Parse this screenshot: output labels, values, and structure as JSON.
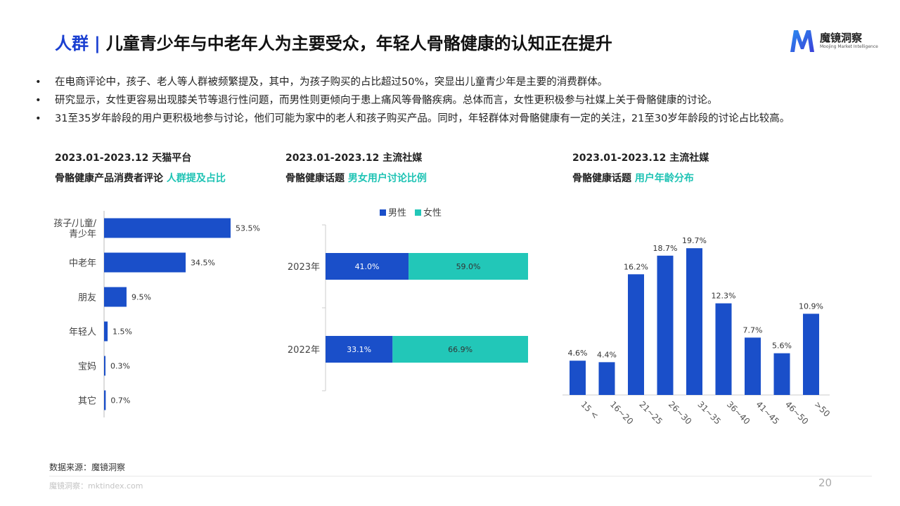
{
  "header": {
    "category": "人群",
    "separator": "|",
    "title": "儿童青少年与中老年人为主要受众，年轻人骨骼健康的认知正在提升"
  },
  "logo": {
    "name": "魔镜洞察",
    "tagline": "Moojing Market Intelligence"
  },
  "bullets": [
    "在电商评论中，孩子、老人等人群被频繁提及，其中，为孩子购买的占比超过50%，突显出儿童青少年是主要的消费群体。",
    "研究显示，女性更容易出现膝关节等退行性问题，而男性则更倾向于患上痛风等骨骼疾病。总体而言，女性更积极参与社媒上关于骨骼健康的讨论。",
    "31至35岁年龄段的用户更积极地参与讨论，他们可能为家中的老人和孩子购买产品。同时，年轻群体对骨骼健康有一定的关注，21至30岁年龄段的讨论占比较高。"
  ],
  "chart_headers": [
    {
      "period": "2023.01-2023.12 天猫平台",
      "topic": "骨骼健康产品消费者评论",
      "highlight": "人群提及占比"
    },
    {
      "period": "2023.01-2023.12 主流社媒",
      "topic": "骨骼健康话题",
      "highlight": "男女用户讨论比例"
    },
    {
      "period": "2023.01-2023.12 主流社媒",
      "topic": "骨骼健康话题",
      "highlight": "用户年龄分布"
    }
  ],
  "colors": {
    "primary": "#1a4fc9",
    "accent": "#22c7b8",
    "title_blue": "#1a3fd1"
  },
  "chart_data": [
    {
      "type": "bar",
      "orientation": "horizontal",
      "categories": [
        [
          "孩子/儿童/",
          "青少年"
        ],
        [
          "中老年"
        ],
        [
          "朋友"
        ],
        [
          "年轻人"
        ],
        [
          "宝妈"
        ],
        [
          "其它"
        ]
      ],
      "values": [
        53.5,
        34.5,
        9.5,
        1.5,
        0.3,
        0.7
      ],
      "value_labels": [
        "53.5%",
        "34.5%",
        "9.5%",
        "1.5%",
        "0.3%",
        "0.7%"
      ],
      "xlim": [
        0,
        55
      ]
    },
    {
      "type": "bar",
      "orientation": "horizontal",
      "stacked": true,
      "categories": [
        "2023年",
        "2022年"
      ],
      "series": [
        {
          "name": "男性",
          "values": [
            41.0,
            33.1
          ],
          "labels": [
            "41.0%",
            "33.1%"
          ],
          "color": "#1a4fc9"
        },
        {
          "name": "女性",
          "values": [
            59.0,
            66.9
          ],
          "labels": [
            "59.0%",
            "66.9%"
          ],
          "color": "#22c7b8"
        }
      ],
      "legend": "top-center",
      "xlim": [
        0,
        100
      ]
    },
    {
      "type": "bar",
      "categories": [
        "15 <",
        "16~20",
        "21~25",
        "26~30",
        "31~35",
        "36~40",
        "41~45",
        "46~50",
        ">50"
      ],
      "values": [
        4.6,
        4.4,
        16.2,
        18.7,
        19.7,
        12.3,
        7.7,
        5.6,
        10.9
      ],
      "value_labels": [
        "4.6%",
        "4.4%",
        "16.2%",
        "18.7%",
        "19.7%",
        "12.3%",
        "7.7%",
        "5.6%",
        "10.9%"
      ],
      "ylim": [
        0,
        20
      ]
    }
  ],
  "footer": {
    "source": "数据来源：魔镜洞察",
    "site": "魔镜洞察：mktindex.com",
    "page": "20"
  }
}
